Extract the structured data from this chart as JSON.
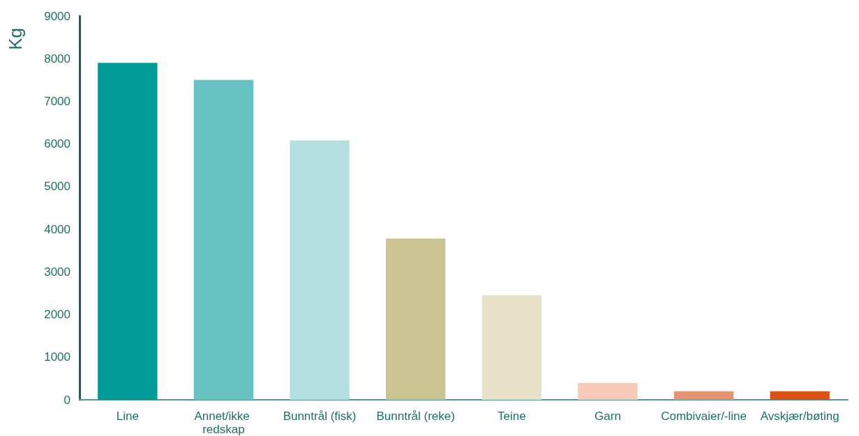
{
  "chart_data": {
    "type": "bar",
    "ylabel": "Kg",
    "categories": [
      "Line",
      "Annet/ikke redskap",
      "Bunntrål (fisk)",
      "Bunntrål (reke)",
      "Teine",
      "Garn",
      "Combivaier/-line",
      "Avskjær/bøting"
    ],
    "values": [
      7900,
      7500,
      6080,
      3780,
      2450,
      390,
      200,
      200
    ],
    "colors": [
      "#009a98",
      "#66c2c1",
      "#b3dfdf",
      "#ccc493",
      "#e6e1c8",
      "#f6c9b8",
      "#e49375",
      "#d95115"
    ],
    "ylim": [
      0,
      9000
    ],
    "yticks": [
      0,
      1000,
      2000,
      3000,
      4000,
      5000,
      6000,
      7000,
      8000,
      9000
    ],
    "grid": false
  }
}
